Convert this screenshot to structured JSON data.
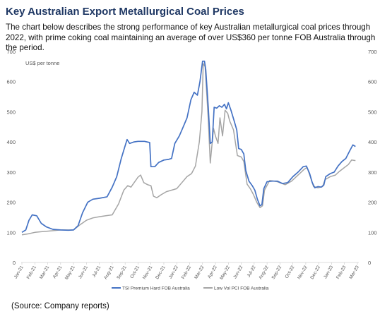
{
  "title": "Key Australian Export Metallurgical Coal Prices",
  "description": "The chart below describes the strong performance of key Australian metallurgical coal prices through 2022, with prime coking coal maintaining an average of over US$360 per tonne FOB Australia through the period.",
  "source": "(Source: Company reports)",
  "chart_data": {
    "type": "line",
    "ylabel": "US$ per tonne",
    "ylim": [
      0,
      700
    ],
    "yticks": [
      0,
      100,
      200,
      300,
      400,
      500,
      600,
      700
    ],
    "xlabels": [
      "Jan-21",
      "Feb-21",
      "Mar-21",
      "Apr-21",
      "May-21",
      "Jun-21",
      "Jul-21",
      "Aug-21",
      "Sep-21",
      "Oct-21",
      "Nov-21",
      "Dec-21",
      "Jan-22",
      "Feb-22",
      "Mar-22",
      "Apr-22",
      "May-22",
      "Jun-22",
      "Jul-22",
      "Aug-22",
      "Sep-22",
      "Oct-22",
      "Nov-22",
      "Dec-22",
      "Jan-23",
      "Feb-23",
      "Mar-23"
    ],
    "grid": false,
    "legend": "bottom",
    "series": [
      {
        "name": "TSI Premium Hard FOB Australia",
        "color": "#4472c4",
        "points": [
          [
            0,
            100
          ],
          [
            0.3,
            108
          ],
          [
            0.55,
            140
          ],
          [
            0.8,
            158
          ],
          [
            1.15,
            155
          ],
          [
            1.5,
            130
          ],
          [
            1.9,
            118
          ],
          [
            2.4,
            110
          ],
          [
            3,
            108
          ],
          [
            3.6,
            107
          ],
          [
            4.0,
            108
          ],
          [
            4.35,
            122
          ],
          [
            4.7,
            165
          ],
          [
            5.1,
            200
          ],
          [
            5.5,
            210
          ],
          [
            6.0,
            213
          ],
          [
            6.6,
            218
          ],
          [
            7.0,
            250
          ],
          [
            7.35,
            285
          ],
          [
            7.7,
            345
          ],
          [
            7.95,
            380
          ],
          [
            8.15,
            408
          ],
          [
            8.35,
            395
          ],
          [
            8.7,
            400
          ],
          [
            9.0,
            402
          ],
          [
            9.5,
            402
          ],
          [
            9.9,
            398
          ],
          [
            10.0,
            318
          ],
          [
            10.3,
            318
          ],
          [
            10.6,
            332
          ],
          [
            11.0,
            340
          ],
          [
            11.35,
            342
          ],
          [
            11.6,
            345
          ],
          [
            11.85,
            395
          ],
          [
            12.2,
            420
          ],
          [
            12.5,
            450
          ],
          [
            12.8,
            480
          ],
          [
            13.1,
            540
          ],
          [
            13.35,
            565
          ],
          [
            13.6,
            555
          ],
          [
            13.8,
            600
          ],
          [
            14.0,
            668
          ],
          [
            14.15,
            668
          ],
          [
            14.25,
            640
          ],
          [
            14.45,
            510
          ],
          [
            14.6,
            395
          ],
          [
            14.75,
            400
          ],
          [
            14.9,
            515
          ],
          [
            15.1,
            512
          ],
          [
            15.3,
            520
          ],
          [
            15.5,
            515
          ],
          [
            15.7,
            525
          ],
          [
            15.85,
            510
          ],
          [
            16.0,
            530
          ],
          [
            16.2,
            505
          ],
          [
            16.45,
            470
          ],
          [
            16.65,
            440
          ],
          [
            16.8,
            378
          ],
          [
            17.0,
            375
          ],
          [
            17.2,
            360
          ],
          [
            17.35,
            305
          ],
          [
            17.6,
            270
          ],
          [
            17.85,
            255
          ],
          [
            18.05,
            240
          ],
          [
            18.25,
            210
          ],
          [
            18.45,
            188
          ],
          [
            18.6,
            192
          ],
          [
            18.75,
            245
          ],
          [
            19.0,
            268
          ],
          [
            19.4,
            270
          ],
          [
            19.8,
            270
          ],
          [
            20.2,
            262
          ],
          [
            20.6,
            265
          ],
          [
            21.0,
            285
          ],
          [
            21.4,
            300
          ],
          [
            21.8,
            318
          ],
          [
            22.05,
            320
          ],
          [
            22.3,
            295
          ],
          [
            22.5,
            265
          ],
          [
            22.7,
            248
          ],
          [
            22.95,
            252
          ],
          [
            23.2,
            250
          ],
          [
            23.4,
            257
          ],
          [
            23.55,
            285
          ],
          [
            23.9,
            295
          ],
          [
            24.2,
            300
          ],
          [
            24.5,
            320
          ],
          [
            24.8,
            335
          ],
          [
            25.1,
            345
          ],
          [
            25.4,
            370
          ],
          [
            25.65,
            390
          ],
          [
            25.85,
            385
          ]
        ]
      },
      {
        "name": "Low Vol PCI FOB Australia",
        "color": "#a5a5a5",
        "points": [
          [
            0,
            92
          ],
          [
            0.5,
            95
          ],
          [
            1.0,
            100
          ],
          [
            1.5,
            102
          ],
          [
            2.0,
            104
          ],
          [
            2.5,
            106
          ],
          [
            3.0,
            108
          ],
          [
            3.5,
            108
          ],
          [
            4.0,
            108
          ],
          [
            4.5,
            125
          ],
          [
            5.0,
            140
          ],
          [
            5.5,
            148
          ],
          [
            6.0,
            152
          ],
          [
            6.5,
            155
          ],
          [
            7.0,
            158
          ],
          [
            7.5,
            195
          ],
          [
            7.9,
            240
          ],
          [
            8.2,
            255
          ],
          [
            8.45,
            250
          ],
          [
            8.7,
            265
          ],
          [
            9.0,
            283
          ],
          [
            9.2,
            290
          ],
          [
            9.45,
            265
          ],
          [
            9.75,
            258
          ],
          [
            10.0,
            255
          ],
          [
            10.2,
            220
          ],
          [
            10.45,
            215
          ],
          [
            10.8,
            225
          ],
          [
            11.2,
            235
          ],
          [
            11.6,
            240
          ],
          [
            12.0,
            245
          ],
          [
            12.4,
            265
          ],
          [
            12.8,
            285
          ],
          [
            13.15,
            295
          ],
          [
            13.45,
            320
          ],
          [
            13.75,
            400
          ],
          [
            13.95,
            500
          ],
          [
            14.05,
            660
          ],
          [
            14.2,
            650
          ],
          [
            14.45,
            470
          ],
          [
            14.6,
            330
          ],
          [
            14.85,
            445
          ],
          [
            15.0,
            420
          ],
          [
            15.2,
            395
          ],
          [
            15.35,
            480
          ],
          [
            15.55,
            420
          ],
          [
            15.75,
            505
          ],
          [
            15.95,
            495
          ],
          [
            16.1,
            470
          ],
          [
            16.4,
            440
          ],
          [
            16.7,
            355
          ],
          [
            17.0,
            350
          ],
          [
            17.2,
            335
          ],
          [
            17.45,
            260
          ],
          [
            17.7,
            245
          ],
          [
            17.95,
            225
          ],
          [
            18.2,
            200
          ],
          [
            18.45,
            182
          ],
          [
            18.65,
            188
          ],
          [
            18.8,
            240
          ],
          [
            19.2,
            272
          ],
          [
            19.8,
            268
          ],
          [
            20.4,
            258
          ],
          [
            20.9,
            270
          ],
          [
            21.4,
            290
          ],
          [
            21.9,
            310
          ],
          [
            22.1,
            315
          ],
          [
            22.35,
            285
          ],
          [
            22.6,
            252
          ],
          [
            22.95,
            248
          ],
          [
            23.3,
            252
          ],
          [
            23.5,
            275
          ],
          [
            23.9,
            285
          ],
          [
            24.3,
            290
          ],
          [
            24.6,
            302
          ],
          [
            25.0,
            315
          ],
          [
            25.3,
            325
          ],
          [
            25.55,
            340
          ],
          [
            25.85,
            338
          ]
        ]
      }
    ]
  }
}
